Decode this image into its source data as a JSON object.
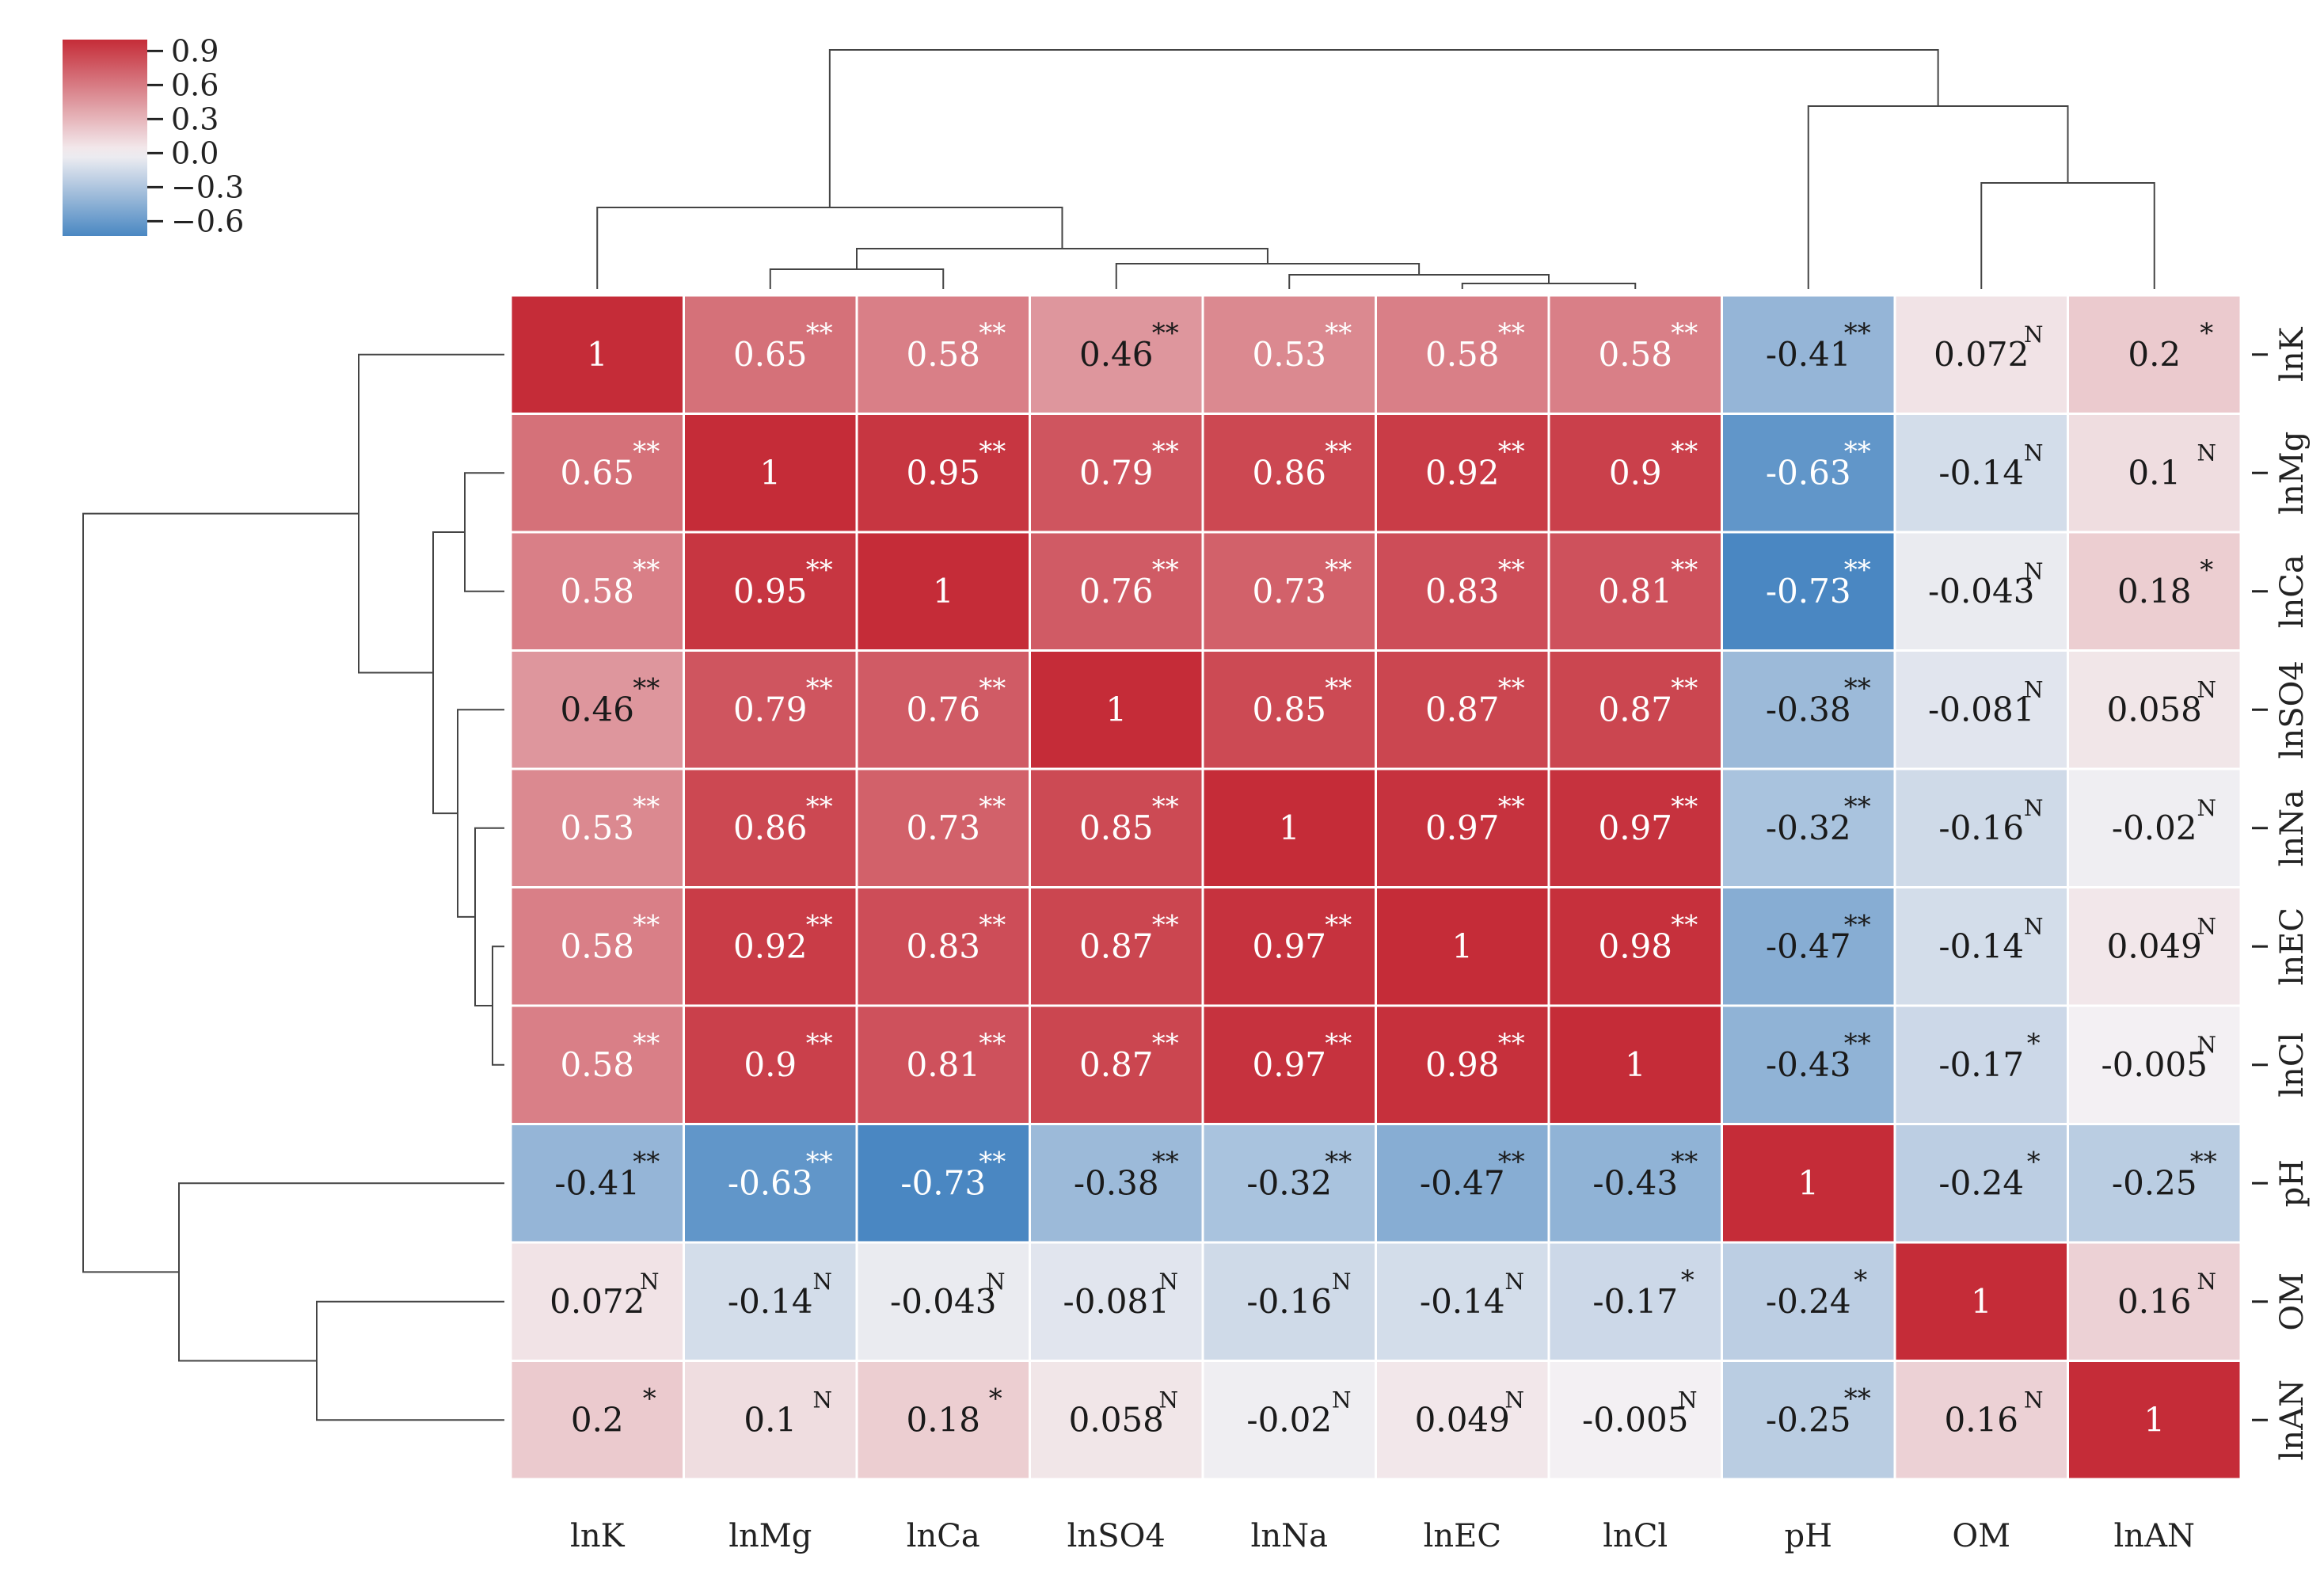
{
  "chart_data": {
    "type": "heatmap",
    "title": "",
    "subtitle": "",
    "xlabel": "",
    "ylabel": "",
    "columns": [
      "lnK",
      "lnMg",
      "lnCa",
      "lnSO4",
      "lnNa",
      "lnEC",
      "lnCl",
      "pH",
      "OM",
      "lnAN"
    ],
    "rows": [
      "lnK",
      "lnMg",
      "lnCa",
      "lnSO4",
      "lnNa",
      "lnEC",
      "lnCl",
      "pH",
      "OM",
      "lnAN"
    ],
    "values": [
      [
        1,
        0.65,
        0.58,
        0.46,
        0.53,
        0.58,
        0.58,
        -0.41,
        0.072,
        0.2
      ],
      [
        0.65,
        1,
        0.95,
        0.79,
        0.86,
        0.92,
        0.9,
        -0.63,
        -0.14,
        0.1
      ],
      [
        0.58,
        0.95,
        1,
        0.76,
        0.73,
        0.83,
        0.81,
        -0.73,
        -0.043,
        0.18
      ],
      [
        0.46,
        0.79,
        0.76,
        1,
        0.85,
        0.87,
        0.87,
        -0.38,
        -0.081,
        0.058
      ],
      [
        0.53,
        0.86,
        0.73,
        0.85,
        1,
        0.97,
        0.97,
        -0.32,
        -0.16,
        -0.02
      ],
      [
        0.58,
        0.92,
        0.83,
        0.87,
        0.97,
        1,
        0.98,
        -0.47,
        -0.14,
        0.049
      ],
      [
        0.58,
        0.9,
        0.81,
        0.87,
        0.97,
        0.98,
        1,
        -0.43,
        -0.17,
        -0.005
      ],
      [
        -0.41,
        -0.63,
        -0.73,
        -0.38,
        -0.32,
        -0.47,
        -0.43,
        1,
        -0.24,
        -0.25
      ],
      [
        0.072,
        -0.14,
        -0.043,
        -0.081,
        -0.16,
        -0.14,
        -0.17,
        -0.24,
        1,
        0.16
      ],
      [
        0.2,
        0.1,
        0.18,
        0.058,
        -0.02,
        0.049,
        -0.005,
        -0.25,
        0.16,
        1
      ]
    ],
    "labels": [
      [
        "1",
        "0.65",
        "0.58",
        "0.46",
        "0.53",
        "0.58",
        "0.58",
        "-0.41",
        "0.072",
        "0.2"
      ],
      [
        "0.65",
        "1",
        "0.95",
        "0.79",
        "0.86",
        "0.92",
        "0.9",
        "-0.63",
        "-0.14",
        "0.1"
      ],
      [
        "0.58",
        "0.95",
        "1",
        "0.76",
        "0.73",
        "0.83",
        "0.81",
        "-0.73",
        "-0.043",
        "0.18"
      ],
      [
        "0.46",
        "0.79",
        "0.76",
        "1",
        "0.85",
        "0.87",
        "0.87",
        "-0.38",
        "-0.081",
        "0.058"
      ],
      [
        "0.53",
        "0.86",
        "0.73",
        "0.85",
        "1",
        "0.97",
        "0.97",
        "-0.32",
        "-0.16",
        "-0.02"
      ],
      [
        "0.58",
        "0.92",
        "0.83",
        "0.87",
        "0.97",
        "1",
        "0.98",
        "-0.47",
        "-0.14",
        "0.049"
      ],
      [
        "0.58",
        "0.9",
        "0.81",
        "0.87",
        "0.97",
        "0.98",
        "1",
        "-0.43",
        "-0.17",
        "-0.005"
      ],
      [
        "-0.41",
        "-0.63",
        "-0.73",
        "-0.38",
        "-0.32",
        "-0.47",
        "-0.43",
        "1",
        "-0.24",
        "-0.25"
      ],
      [
        "0.072",
        "-0.14",
        "-0.043",
        "-0.081",
        "-0.16",
        "-0.14",
        "-0.17",
        "-0.24",
        "1",
        "0.16"
      ],
      [
        "0.2",
        "0.1",
        "0.18",
        "0.058",
        "-0.02",
        "0.049",
        "-0.005",
        "-0.25",
        "0.16",
        "1"
      ]
    ],
    "significance": [
      [
        "",
        "**",
        "**",
        "**",
        "**",
        "**",
        "**",
        "**",
        "N",
        "*"
      ],
      [
        "**",
        "",
        "**",
        "**",
        "**",
        "**",
        "**",
        "**",
        "N",
        "N"
      ],
      [
        "**",
        "**",
        "",
        "**",
        "**",
        "**",
        "**",
        "**",
        "N",
        "*"
      ],
      [
        "**",
        "**",
        "**",
        "",
        "**",
        "**",
        "**",
        "**",
        "N",
        "N"
      ],
      [
        "**",
        "**",
        "**",
        "**",
        "",
        "**",
        "**",
        "**",
        "N",
        "N"
      ],
      [
        "**",
        "**",
        "**",
        "**",
        "**",
        "",
        "**",
        "**",
        "N",
        "N"
      ],
      [
        "**",
        "**",
        "**",
        "**",
        "**",
        "**",
        "",
        "**",
        "*",
        "N"
      ],
      [
        "**",
        "**",
        "**",
        "**",
        "**",
        "**",
        "**",
        "",
        "*",
        "**"
      ],
      [
        "N",
        "N",
        "N",
        "N",
        "N",
        "N",
        "*",
        "*",
        "",
        "N"
      ],
      [
        "*",
        "N",
        "*",
        "N",
        "N",
        "N",
        "N",
        "**",
        "N",
        ""
      ]
    ],
    "colorbar": {
      "ticks": [
        "0.9",
        "0.6",
        "0.3",
        "0.0",
        "−0.3",
        "−0.6"
      ],
      "tick_values": [
        0.9,
        0.6,
        0.3,
        0.0,
        -0.3,
        -0.6
      ],
      "range": [
        -0.73,
        1.0
      ],
      "colormap": [
        "#4a87c2",
        "#f4f1f3",
        "#c52c38"
      ]
    },
    "legend_placement": "top-left",
    "dendrogram_order": [
      "lnK",
      "lnMg",
      "lnCa",
      "lnSO4",
      "lnNa",
      "lnEC",
      "lnCl",
      "pH",
      "OM",
      "lnAN"
    ]
  }
}
